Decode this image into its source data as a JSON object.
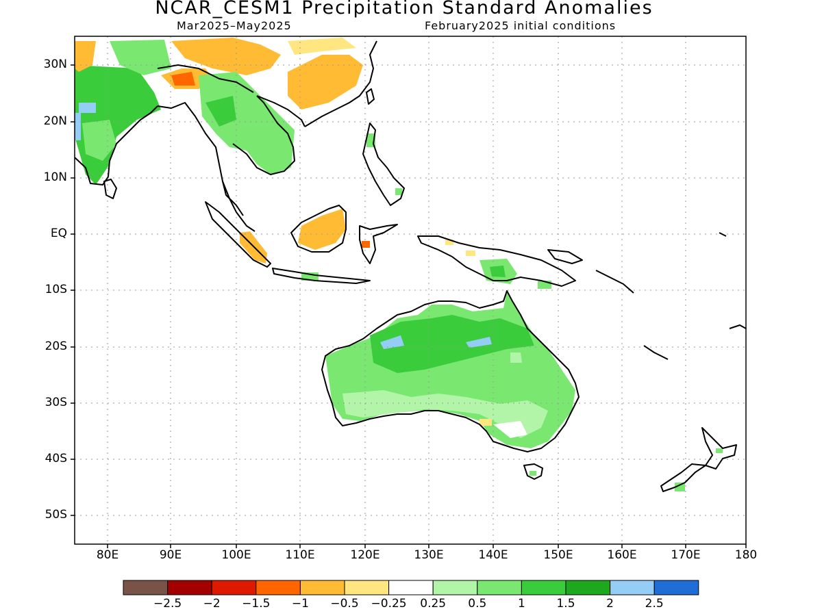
{
  "title": "NCAR_CESM1 Precipitation Standard Anomalies",
  "subtitle_left": "Mar2025–May2025",
  "subtitle_right": "February2025 initial conditions",
  "lat_labels": [
    "30N",
    "20N",
    "10N",
    "EQ",
    "10S",
    "20S",
    "30S",
    "40S",
    "50S"
  ],
  "lon_labels": [
    "80E",
    "90E",
    "100E",
    "110E",
    "120E",
    "130E",
    "140E",
    "150E",
    "160E",
    "170E",
    "180"
  ],
  "colorbar": {
    "colors": [
      "#7a5348",
      "#a30000",
      "#dd1a00",
      "#ff6600",
      "#ffbb33",
      "#ffe680",
      "#ffffff",
      "#b3f5a8",
      "#7ae870",
      "#3bcc3b",
      "#1ea81e",
      "#94cdf5",
      "#1f6dd6"
    ],
    "labels": [
      "−2.5",
      "−2",
      "−1.5",
      "−1",
      "−0.5",
      "−0.25",
      "0.25",
      "0.5",
      "1",
      "1.5",
      "2",
      "2.5"
    ]
  },
  "colors": {
    "coast": "#000000",
    "grid": "#999999"
  }
}
